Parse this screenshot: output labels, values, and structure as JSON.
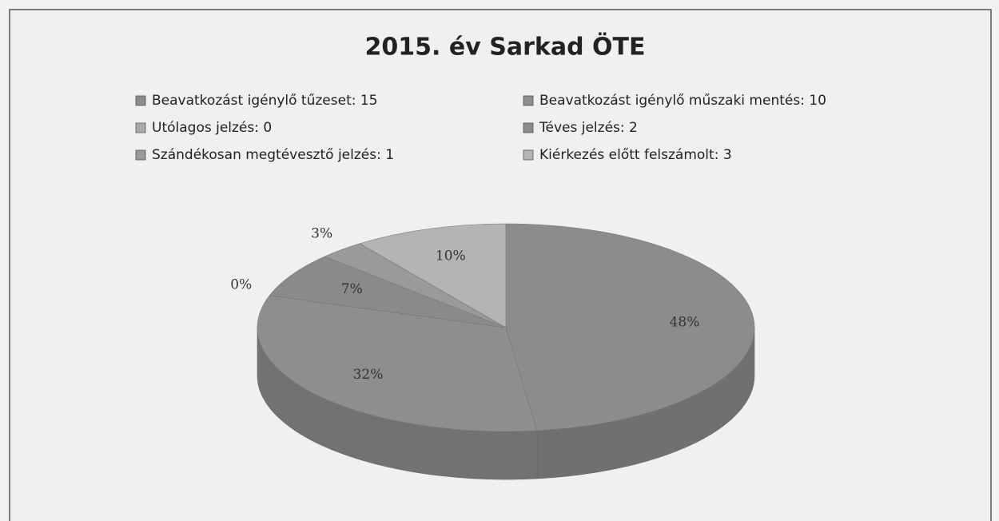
{
  "chart_data": {
    "type": "pie",
    "title": "2015. év Sarkad ÖTE",
    "categories": [
      "Beavatkozást igénylő tűzeset: 15",
      "Beavatkozást igénylő műszaki mentés: 10",
      "Utólagos jelzés: 0",
      "Téves jelzés: 2",
      "Szándékosan megtévesztő jelzés: 1",
      "Kiérkezés előtt felszámolt: 3"
    ],
    "values": [
      48,
      32,
      0,
      7,
      3,
      10
    ],
    "value_labels": [
      "48%",
      "32%",
      "0%",
      "7%",
      "3%",
      "10%"
    ],
    "colors": [
      "#8c8c8c",
      "#8e8e8e",
      "#a8a8a8",
      "#8a8a8a",
      "#9a9a9a",
      "#b4b4b4"
    ],
    "legend": "top"
  }
}
